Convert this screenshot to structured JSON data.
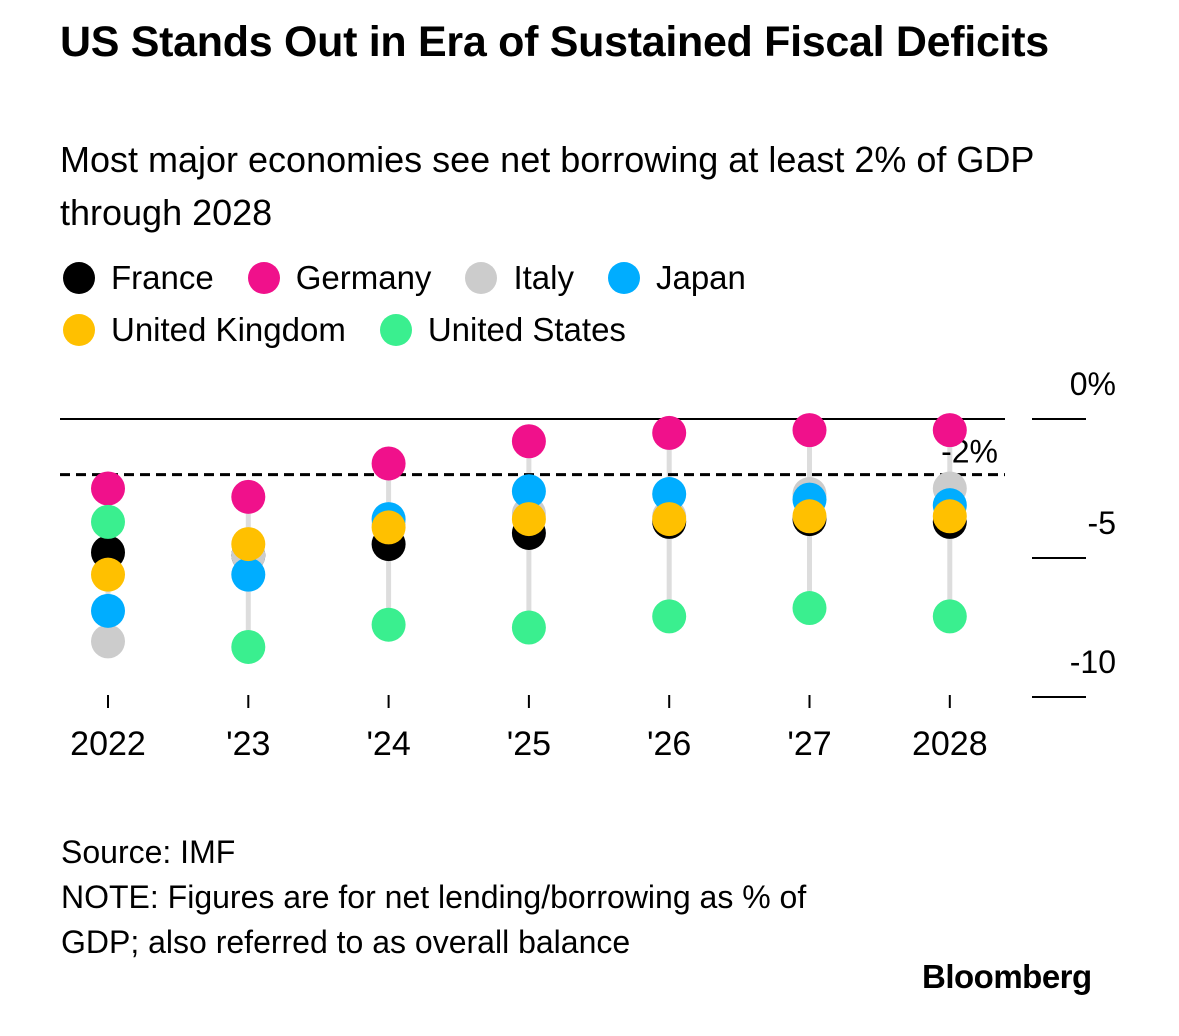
{
  "header": {
    "title": "US Stands Out in Era of Sustained Fiscal Deficits",
    "subtitle": "Most major economies see net borrowing at least 2% of GDP through 2028"
  },
  "legend": {
    "rows": [
      [
        {
          "label": "France",
          "color": "#000000"
        },
        {
          "label": "Germany",
          "color": "#f0118b"
        },
        {
          "label": "Italy",
          "color": "#cccccc"
        },
        {
          "label": "Japan",
          "color": "#00adff"
        }
      ],
      [
        {
          "label": "United Kingdom",
          "color": "#ffc000"
        },
        {
          "label": "United States",
          "color": "#3aef8f"
        }
      ]
    ]
  },
  "chart_data": {
    "type": "scatter",
    "title": "US Stands Out in Era of Sustained Fiscal Deficits",
    "subtitle": "Most major economies see net borrowing at least 2% of GDP through 2028",
    "x": [
      "2022",
      "'23",
      "'24",
      "'25",
      "'26",
      "'27",
      "2028"
    ],
    "ylim": [
      -10,
      0
    ],
    "y_ticks": [
      {
        "value": 0,
        "label": "0%"
      },
      {
        "value": -5,
        "label": "-5"
      },
      {
        "value": -10,
        "label": "-10"
      }
    ],
    "reference_line": {
      "value": -2,
      "label": "-2%",
      "style": "dashed"
    },
    "series": [
      {
        "name": "France",
        "color": "#000000",
        "values": [
          -4.8,
          -4.9,
          -4.5,
          -4.1,
          -3.7,
          -3.6,
          -3.7
        ]
      },
      {
        "name": "Germany",
        "color": "#f0118b",
        "values": [
          -2.5,
          -2.8,
          -1.6,
          -0.8,
          -0.5,
          -0.4,
          -0.4
        ]
      },
      {
        "name": "Italy",
        "color": "#cccccc",
        "values": [
          -8.0,
          -4.9,
          -3.8,
          -3.4,
          -3.5,
          -2.7,
          -2.5
        ]
      },
      {
        "name": "Japan",
        "color": "#00adff",
        "values": [
          -6.9,
          -5.6,
          -3.6,
          -2.6,
          -2.7,
          -2.9,
          -3.1
        ]
      },
      {
        "name": "United Kingdom",
        "color": "#ffc000",
        "values": [
          -5.6,
          -4.5,
          -3.9,
          -3.6,
          -3.6,
          -3.5,
          -3.5
        ]
      },
      {
        "name": "United States",
        "color": "#3aef8f",
        "values": [
          -3.7,
          -8.2,
          -7.4,
          -7.5,
          -7.1,
          -6.8,
          -7.1
        ]
      }
    ],
    "legend": "top-left"
  },
  "footer": {
    "source": "Source: IMF",
    "note": "NOTE: Figures are for net lending/borrowing as % of GDP; also referred to as overall balance",
    "brand": "Bloomberg"
  }
}
